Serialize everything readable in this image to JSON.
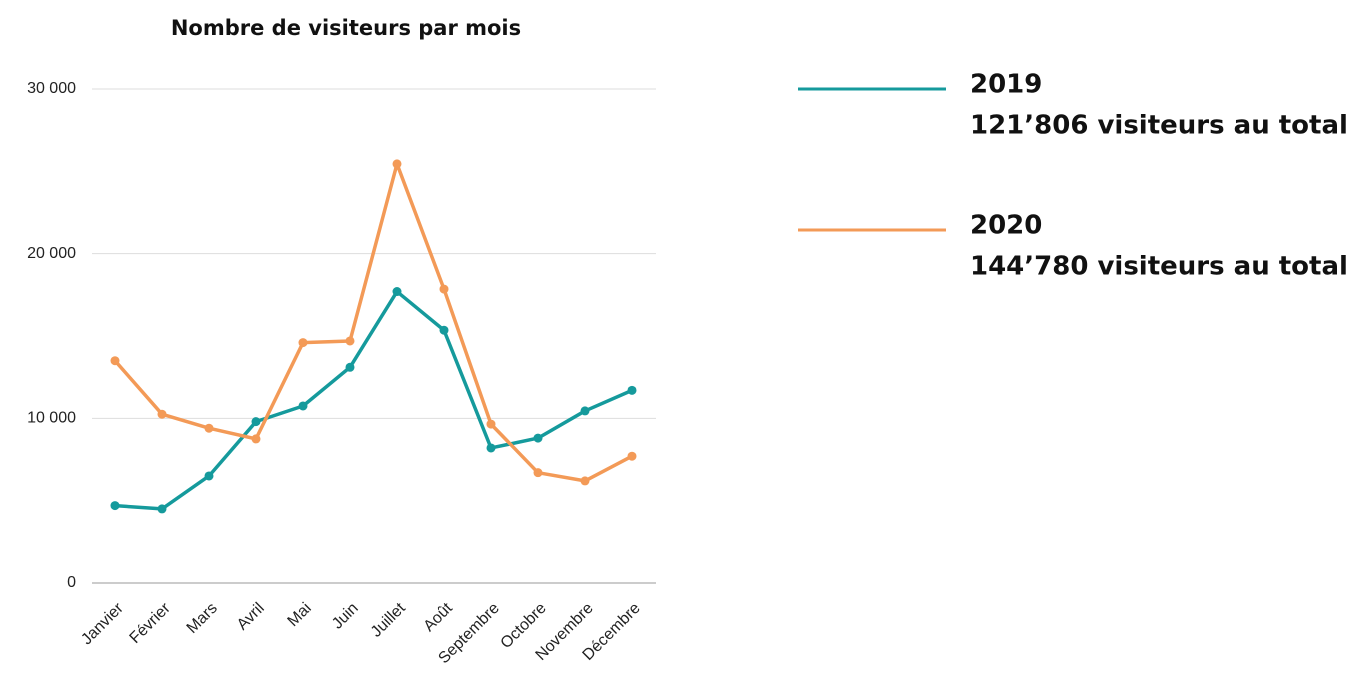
{
  "chart_data": {
    "type": "line",
    "title": "Nombre de visiteurs par mois",
    "categories": [
      "Janvier",
      "Février",
      "Mars",
      "Avril",
      "Mai",
      "Juin",
      "Juillet",
      "Août",
      "Septembre",
      "Octobre",
      "Novembre",
      "Décembre"
    ],
    "series": [
      {
        "name": "2019",
        "total": "121’806 visiteurs au total",
        "color": "#159a9c",
        "values": [
          4700,
          4500,
          6500,
          9800,
          10750,
          13100,
          17700,
          15350,
          8200,
          8800,
          10450,
          11700
        ]
      },
      {
        "name": "2020",
        "total": "144’780 visiteurs au total",
        "color": "#f39a57",
        "values": [
          13500,
          10250,
          9400,
          8750,
          14600,
          14700,
          25450,
          17850,
          9650,
          6700,
          6200,
          7700
        ]
      }
    ],
    "ylim": [
      0,
      30000
    ],
    "yticks": [
      0,
      {
        "value": 10000,
        "label": "10 000"
      },
      {
        "value": 20000,
        "label": "20 000"
      },
      {
        "value": 30000,
        "label": "30 000"
      }
    ],
    "grid": true
  }
}
